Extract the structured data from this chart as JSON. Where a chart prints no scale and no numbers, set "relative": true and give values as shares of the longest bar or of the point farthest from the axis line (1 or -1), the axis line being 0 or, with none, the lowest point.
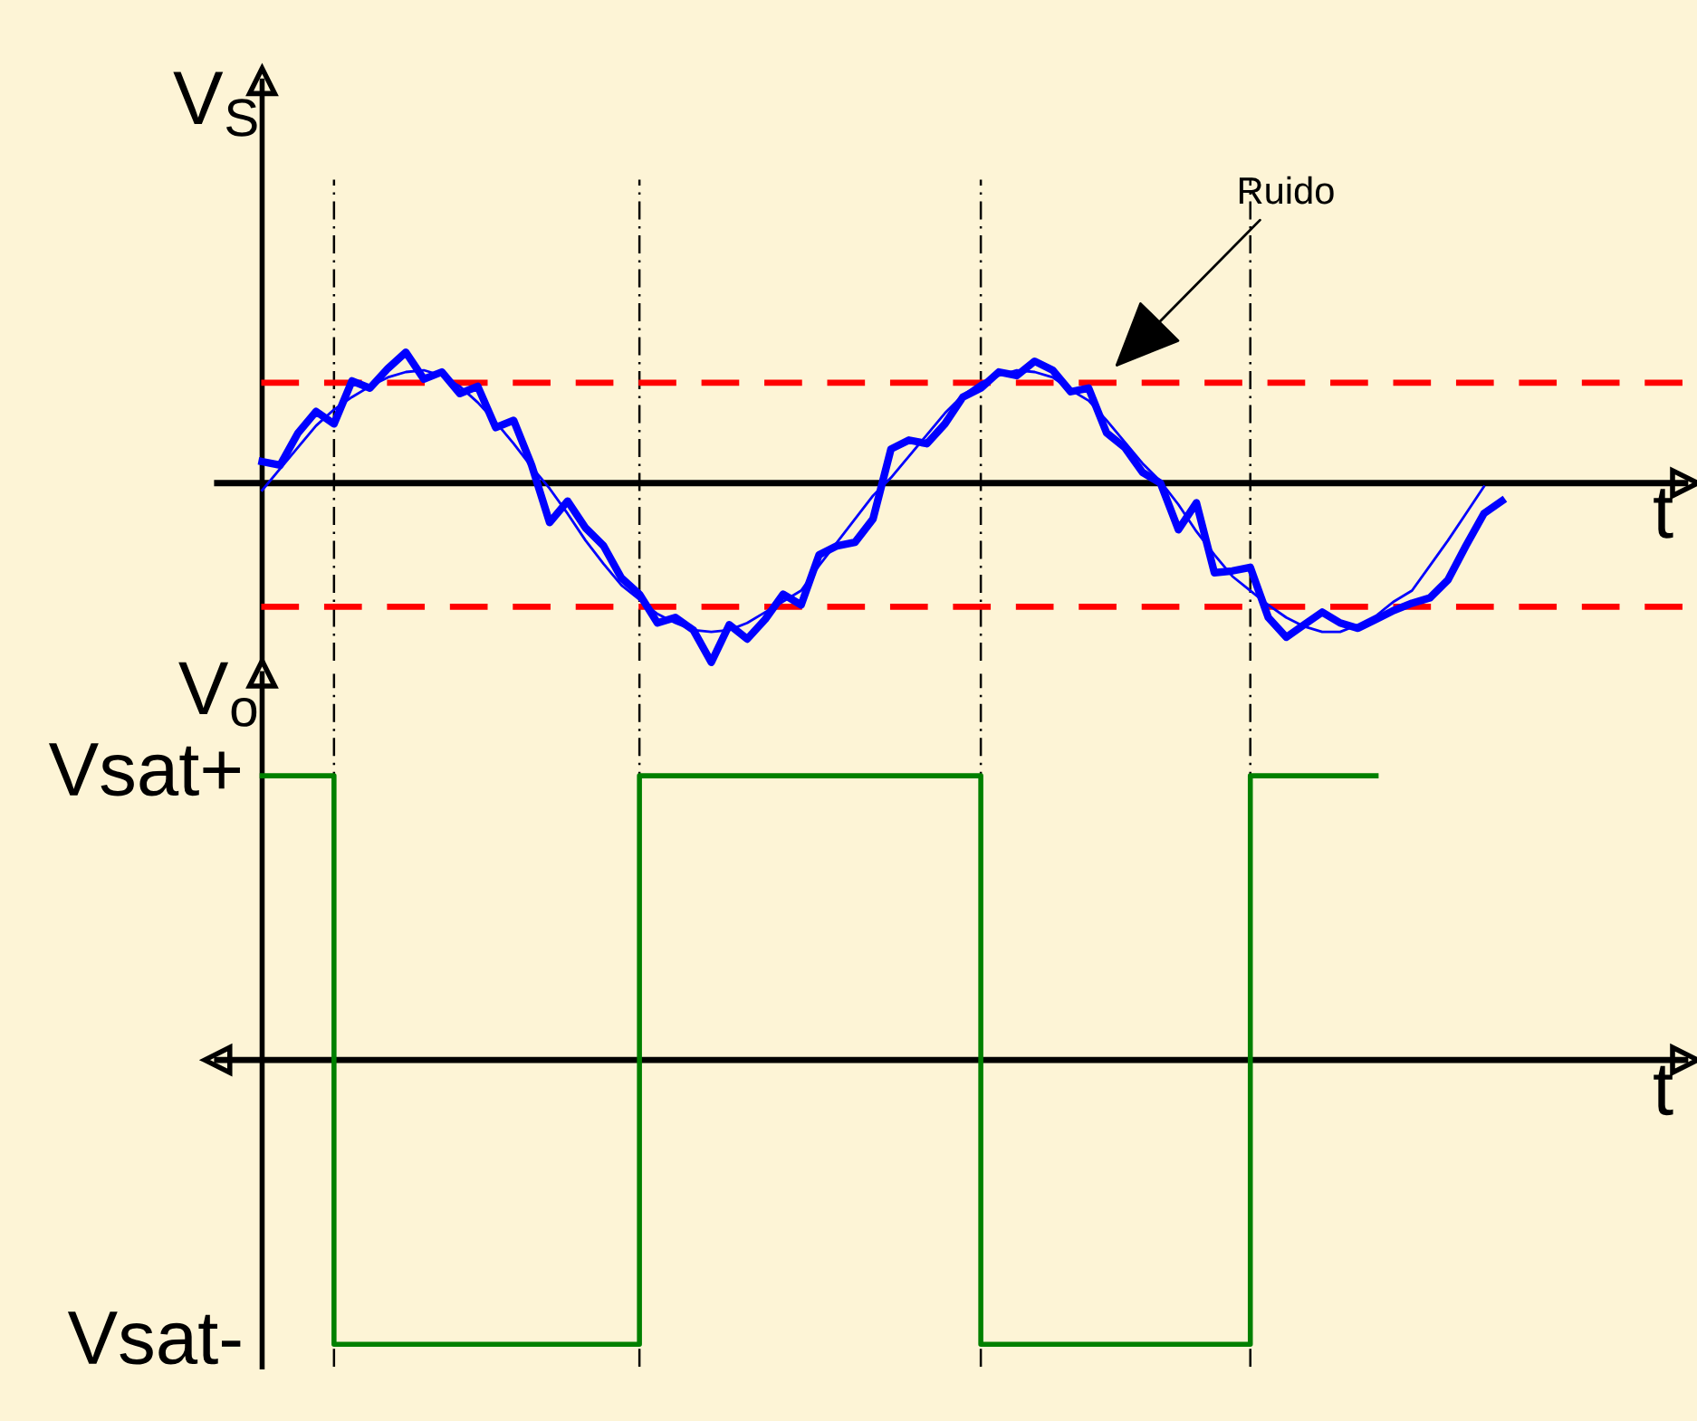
{
  "chart_data": [
    {
      "type": "line",
      "relative": true,
      "ylabel": "V$_{S}$",
      "xlabel": "t",
      "grid": "x",
      "categories": [
        null,
        null,
        null,
        null,
        null,
        null,
        null,
        null,
        null,
        null,
        null,
        null,
        null,
        null,
        null,
        null,
        null,
        null,
        null,
        null,
        null,
        null,
        null,
        null,
        null,
        null,
        null,
        null,
        null,
        null,
        null,
        null,
        null,
        null,
        null,
        null,
        null,
        null,
        null,
        null,
        null,
        null,
        null,
        null,
        null,
        null,
        null,
        null,
        null,
        null,
        null,
        null,
        null,
        null,
        null,
        null,
        null,
        null,
        null,
        null,
        null,
        null,
        null,
        null,
        null,
        null,
        null,
        null,
        null,
        null
      ],
      "series": [
        {
          "color": "#0000ff",
          "values": [
            0.12,
            0.1,
            0.28,
            0.4,
            0.33,
            0.57,
            0.53,
            0.64,
            0.73,
            0.58,
            0.62,
            0.5,
            0.54,
            0.31,
            0.35,
            0.1,
            -0.22,
            -0.1,
            -0.25,
            -0.35,
            -0.53,
            -0.62,
            -0.78,
            -0.75,
            -0.82,
            -1,
            -0.79,
            -0.87,
            -0.76,
            -0.62,
            -0.68,
            -0.4,
            -0.35,
            -0.33,
            -0.2,
            0.19,
            0.24,
            0.22,
            0.33,
            0.48,
            0.53,
            0.62,
            0.6,
            0.68,
            0.63,
            0.51,
            0.53,
            0.28,
            0.2,
            0.06,
            0.0,
            -0.26,
            -0.11,
            -0.5,
            -0.49,
            -0.47,
            -0.75,
            -0.86,
            -0.79,
            -0.72,
            -0.78,
            -0.81,
            -0.76,
            -0.71,
            -0.67,
            -0.64,
            -0.54,
            -0.35,
            -0.17,
            -0.1
          ]
        },
        {
          "color": "#0000ff",
          "values": [
            -0.04,
            0.08,
            0.2,
            0.32,
            0.41,
            0.48,
            0.54,
            0.59,
            0.62,
            0.63,
            0.6,
            0.54,
            0.45,
            0.34,
            0.22,
            0.09,
            -0.03,
            -0.17,
            -0.32,
            -0.45,
            -0.57,
            -0.65,
            -0.73,
            -0.78,
            -0.82,
            -0.83,
            -0.82,
            -0.78,
            -0.72,
            -0.66,
            -0.6,
            -0.46,
            -0.33,
            -0.2,
            -0.07,
            0.03,
            0.15,
            0.27,
            0.39,
            0.49,
            0.56,
            0.6,
            0.63,
            0.62,
            0.59,
            0.52,
            0.46,
            0.35,
            0.23,
            0.11,
            0.01,
            -0.12,
            -0.27,
            -0.4,
            -0.52,
            -0.6,
            -0.68,
            -0.75,
            -0.8,
            -0.83,
            -0.83,
            -0.79,
            -0.74,
            -0.66,
            -0.6,
            -0.46,
            -0.32,
            -0.17,
            -0.02,
            null
          ]
        }
      ],
      "ref_lines": [
        {
          "axis": "y",
          "value": 0.56,
          "color": "#ff0000",
          "line_style": "dashed"
        },
        {
          "axis": "y",
          "value": -0.69,
          "color": "#ff0000",
          "line_style": "dashed"
        }
      ],
      "annotations": [
        "Ruido"
      ]
    },
    {
      "type": "step",
      "ylabel": "V$_{o}$",
      "xlabel": "t",
      "relative": true,
      "annotations": [
        "Vsat+",
        "Vsat-"
      ],
      "grid": "x",
      "categories": [
        null,
        null,
        null,
        null,
        null,
        null,
        null,
        null,
        null,
        null,
        null,
        null,
        null,
        null,
        null,
        null,
        null,
        null,
        null,
        null,
        null,
        null,
        null,
        null,
        null,
        null,
        null,
        null,
        null,
        null,
        null,
        null,
        null,
        null,
        null,
        null,
        null,
        null,
        null,
        null,
        null,
        null,
        null,
        null,
        null,
        null,
        null,
        null,
        null,
        null,
        null,
        null,
        null,
        null,
        null,
        null,
        null,
        null,
        null,
        null,
        null,
        null,
        null
      ],
      "series": [
        {
          "color": "#008000",
          "values": [
            1,
            1,
            1,
            1,
            -1,
            -1,
            -1,
            -1,
            -1,
            -1,
            -1,
            -1,
            -1,
            -1,
            -1,
            -1,
            -1,
            -1,
            -1,
            -1,
            -1,
            1,
            1,
            1,
            1,
            1,
            1,
            1,
            1,
            1,
            1,
            1,
            1,
            1,
            1,
            1,
            1,
            1,
            1,
            1,
            -1,
            -1,
            -1,
            -1,
            -1,
            -1,
            -1,
            -1,
            -1,
            -1,
            -1,
            -1,
            -1,
            -1,
            -1,
            1,
            1,
            1,
            1,
            1,
            1,
            1,
            1
          ]
        }
      ]
    }
  ]
}
